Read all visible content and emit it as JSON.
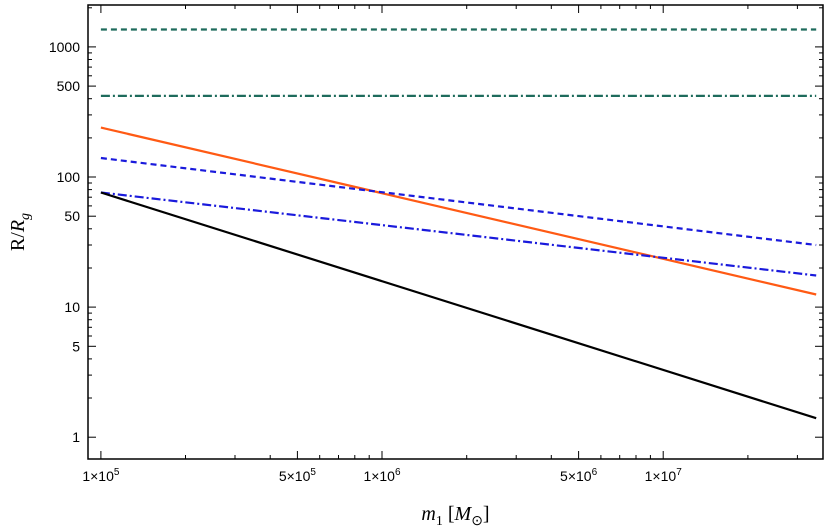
{
  "chart_data": {
    "type": "line",
    "x_scale": "log",
    "y_scale": "log",
    "xlim": [
      90000,
      37000000
    ],
    "ylim": [
      0.68,
      2100
    ],
    "xlabel": {
      "main": "m",
      "sub": "1",
      "bracket_open": " [",
      "unit_main": "M",
      "unit_sub": "⊙",
      "bracket_close": "]"
    },
    "ylabel": {
      "prefix": "R/",
      "main": "R",
      "sub": "g"
    },
    "x_ticks": [
      {
        "value": 100000,
        "label": {
          "mant": "1",
          "exp": "5"
        }
      },
      {
        "value": 500000,
        "label": {
          "mant": "5",
          "exp": "5"
        }
      },
      {
        "value": 1000000,
        "label": {
          "mant": "1",
          "exp": "6"
        }
      },
      {
        "value": 5000000,
        "label": {
          "mant": "5",
          "exp": "6"
        }
      },
      {
        "value": 10000000,
        "label": {
          "mant": "1",
          "exp": "7"
        }
      }
    ],
    "x_minor_ticks": [
      200000,
      300000,
      400000,
      600000,
      700000,
      800000,
      900000,
      2000000,
      3000000,
      4000000,
      6000000,
      7000000,
      8000000,
      9000000,
      20000000,
      30000000
    ],
    "y_ticks": [
      {
        "value": 1,
        "label": "1"
      },
      {
        "value": 5,
        "label": "5"
      },
      {
        "value": 10,
        "label": "10"
      },
      {
        "value": 50,
        "label": "50"
      },
      {
        "value": 100,
        "label": "100"
      },
      {
        "value": 500,
        "label": "500"
      },
      {
        "value": 1000,
        "label": "1000"
      }
    ],
    "y_minor_ticks": [
      2,
      3,
      4,
      6,
      7,
      8,
      9,
      20,
      30,
      40,
      60,
      70,
      80,
      90,
      200,
      300,
      400,
      600,
      700,
      800,
      900,
      2000
    ],
    "series": [
      {
        "x": [
          100000,
          35000000
        ],
        "y": [
          1360,
          1360
        ],
        "color": "#1e6b5c",
        "dash": "dashed"
      },
      {
        "x": [
          100000,
          35000000
        ],
        "y": [
          420,
          420
        ],
        "color": "#1e6b5c",
        "dash": "dashdot"
      },
      {
        "x": [
          100000,
          35000000
        ],
        "y": [
          240,
          12.5
        ],
        "color": "#ff5a14",
        "dash": "solid"
      },
      {
        "x": [
          100000,
          35000000
        ],
        "y": [
          140,
          30
        ],
        "color": "#1a1adc",
        "dash": "dashed"
      },
      {
        "x": [
          100000,
          35000000
        ],
        "y": [
          76,
          17.5
        ],
        "color": "#1a1adc",
        "dash": "dashdot"
      },
      {
        "x": [
          100000,
          35000000
        ],
        "y": [
          76,
          1.4
        ],
        "color": "#000000",
        "dash": "solid"
      }
    ]
  }
}
